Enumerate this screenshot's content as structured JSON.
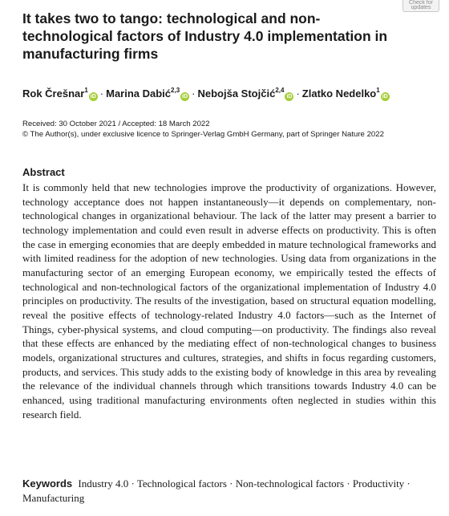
{
  "badge": "Check for updates",
  "title": "It takes two to tango: technological and non-technological factors of Industry 4.0 implementation in manufacturing firms",
  "authors": [
    {
      "name": "Rok Črešnar",
      "sup": "1"
    },
    {
      "name": "Marina Dabić",
      "sup": "2,3"
    },
    {
      "name": "Nebojša Stojčić",
      "sup": "2,4"
    },
    {
      "name": "Zlatko Nedelko",
      "sup": "1"
    }
  ],
  "author_separator": "·",
  "orcid_colour": "#a6ce39",
  "received": "Received: 30 October 2021 / Accepted: 18 March 2022",
  "copyright": "© The Author(s), under exclusive licence to Springer-Verlag GmbH Germany, part of Springer Nature 2022",
  "abstract": {
    "heading": "Abstract",
    "text": "It is commonly held that new technologies improve the productivity of organizations. However, technology acceptance does not happen instantaneously—it depends on complementary, non-technological changes in organizational behaviour. The lack of the latter may present a barrier to technology implementation and could even result in adverse effects on productivity. This is often the case in emerging economies that are deeply embedded in mature technological frameworks and with limited readiness for the adoption of new technologies. Using data from organizations in the manufacturing sector of an emerging European economy, we empirically tested the effects of technological and non-technological factors of the organizational implementation of Industry 4.0 principles on productivity. The results of the investigation, based on structural equation modelling, reveal the positive effects of technology-related Industry 4.0 factors—such as the Internet of Things, cyber-physical systems, and cloud computing—on productivity. The findings also reveal that these effects are enhanced by the mediating effect of non-technological changes to business models, organizational structures and cultures, strategies, and shifts in focus regarding customers, products, and services. This study adds to the existing body of knowledge in this area by revealing the relevance of the individual channels through which transitions towards Industry 4.0 can be enhanced, using traditional manufacturing environments often neglected in studies within this research field."
  },
  "keywords": {
    "label": "Keywords",
    "text": "Industry 4.0 · Technological factors · Non-technological factors · Productivity · Manufacturing"
  }
}
